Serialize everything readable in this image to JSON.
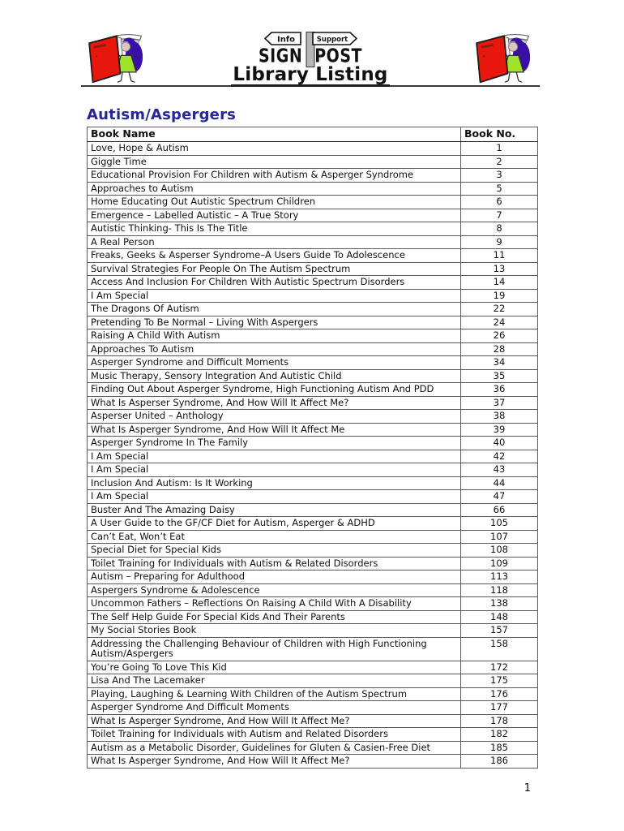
{
  "header": {
    "sign_left_label": "Info",
    "sign_right_label": "Support",
    "sign_word_1": "SIGN",
    "sign_word_2": "POST",
    "title": "Library Listing",
    "logo_left_icon": "book-girl-clipart",
    "logo_right_icon": "book-girl-clipart"
  },
  "section": {
    "heading": "Autism/Aspergers"
  },
  "table": {
    "columns": [
      "Book Name",
      "Book No."
    ],
    "rows": [
      {
        "name": "Love, Hope & Autism",
        "no": "1",
        "small": false
      },
      {
        "name": "Giggle Time",
        "no": "2",
        "small": false
      },
      {
        "name": "Educational Provision For Children with Autism & Asperger Syndrome",
        "no": "3",
        "small": false
      },
      {
        "name": "Approaches to Autism",
        "no": "5",
        "small": false
      },
      {
        "name": "Home Educating Out Autistic Spectrum Children",
        "no": "6",
        "small": false
      },
      {
        "name": "Emergence – Labelled Autistic – A True Story",
        "no": "7",
        "small": false
      },
      {
        "name": "Autistic Thinking- This Is The Title",
        "no": "8",
        "small": false
      },
      {
        "name": "A Real Person",
        "no": "9",
        "small": false
      },
      {
        "name": "Freaks, Geeks & Asperser Syndrome–A Users Guide To Adolescence",
        "no": "11",
        "small": false
      },
      {
        "name": "Survival Strategies For People On The Autism Spectrum",
        "no": "13",
        "small": false
      },
      {
        "name": "Access And Inclusion For Children With Autistic Spectrum Disorders",
        "no": "14",
        "small": false
      },
      {
        "name": "I Am Special",
        "no": "19",
        "small": false
      },
      {
        "name": "The Dragons Of Autism",
        "no": "22",
        "small": false
      },
      {
        "name": "Pretending To Be Normal – Living With Aspergers",
        "no": "24",
        "small": false
      },
      {
        "name": "Raising A Child With Autism",
        "no": "26",
        "small": false
      },
      {
        "name": "Approaches To Autism",
        "no": "28",
        "small": false
      },
      {
        "name": "Asperger Syndrome and Difficult Moments",
        "no": "34",
        "small": true
      },
      {
        "name": "Music Therapy, Sensory Integration And Autistic Child",
        "no": "35",
        "small": false
      },
      {
        "name": "Finding Out About Asperger Syndrome, High Functioning Autism And PDD",
        "no": "36",
        "small": true
      },
      {
        "name": "What Is Asperser Syndrome, And How Will It Affect Me?",
        "no": "37",
        "small": false
      },
      {
        "name": "Asperser United – Anthology",
        "no": "38",
        "small": false
      },
      {
        "name": "What Is Asperger Syndrome, And How Will It Affect Me",
        "no": "39",
        "small": false
      },
      {
        "name": "Asperger Syndrome In The Family",
        "no": "40",
        "small": false
      },
      {
        "name": "I Am Special",
        "no": "42",
        "small": false
      },
      {
        "name": "I Am Special",
        "no": "43",
        "small": false
      },
      {
        "name": "Inclusion And Autism: Is It Working",
        "no": "44",
        "small": false
      },
      {
        "name": "I Am Special",
        "no": "47",
        "small": false
      },
      {
        "name": "Buster And The Amazing Daisy",
        "no": "66",
        "small": false
      },
      {
        "name": "A User Guide to the GF/CF Diet for Autism, Asperger & ADHD",
        "no": "105",
        "small": false
      },
      {
        "name": "Can’t Eat, Won’t Eat",
        "no": "107",
        "small": false
      },
      {
        "name": "Special Diet for Special Kids",
        "no": "108",
        "small": false
      },
      {
        "name": "Toilet Training for Individuals with Autism & Related Disorders",
        "no": "109",
        "small": false
      },
      {
        "name": "Autism – Preparing for Adulthood",
        "no": "113",
        "small": false
      },
      {
        "name": "Aspergers Syndrome & Adolescence",
        "no": "118",
        "small": false
      },
      {
        "name": "Uncommon Fathers – Reflections On Raising A Child With A Disability",
        "no": "138",
        "small": true
      },
      {
        "name": "The Self Help Guide For Special Kids And Their Parents",
        "no": "148",
        "small": true
      },
      {
        "name": "My Social Stories Book",
        "no": "157",
        "small": false
      },
      {
        "name": "Addressing the Challenging Behaviour of Children with High Functioning Autism/Aspergers",
        "no": "158",
        "small": false
      },
      {
        "name": "You’re Going To Love This Kid",
        "no": "172",
        "small": false
      },
      {
        "name": "Lisa And The Lacemaker",
        "no": "175",
        "small": false
      },
      {
        "name": "Playing, Laughing & Learning With Children of the Autism Spectrum",
        "no": "176",
        "small": false
      },
      {
        "name": "Asperger Syndrome And Difficult Moments",
        "no": "177",
        "small": false
      },
      {
        "name": "What Is Asperger Syndrome, And How Will It Affect Me?",
        "no": "178",
        "small": false
      },
      {
        "name": "Toilet Training for Individuals with Autism and Related Disorders",
        "no": "182",
        "small": false
      },
      {
        "name": "Autism as a Metabolic Disorder, Guidelines for Gluten & Casien-Free Diet",
        "no": "185",
        "small": false
      },
      {
        "name": "What Is Asperger Syndrome, And How Will It Affect Me?",
        "no": "186",
        "small": false
      }
    ]
  },
  "footer": {
    "page_number": "1"
  },
  "colors": {
    "heading": "#26269A",
    "book_red": "#E8170C",
    "hair_blue": "#3A0FA8",
    "dress_green": "#9FE32B",
    "post_gray": "#B7B7B7"
  }
}
